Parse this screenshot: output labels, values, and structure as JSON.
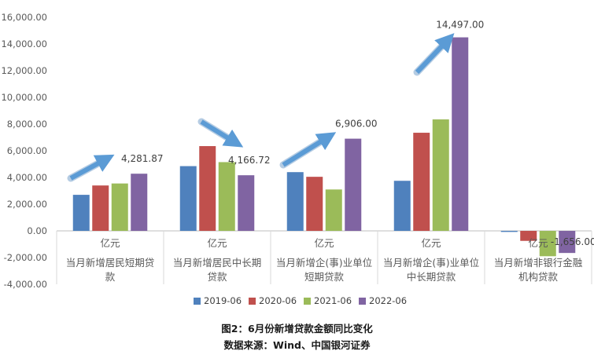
{
  "chart_data": {
    "type": "bar",
    "categories": [
      {
        "unit": "亿元",
        "lines": [
          "当月新增居民短期贷",
          "款"
        ]
      },
      {
        "unit": "亿元",
        "lines": [
          "当月新增居民中长期",
          "贷款"
        ]
      },
      {
        "unit": "亿元",
        "lines": [
          "当月新增企(事)业单位",
          "短期贷款"
        ]
      },
      {
        "unit": "亿元",
        "lines": [
          "当月新增企(事)业单位",
          "中长期贷款"
        ]
      },
      {
        "unit": "亿元",
        "lines": [
          "当月新增非银行金融",
          "机构贷款"
        ]
      }
    ],
    "series": [
      {
        "name": "2019-06",
        "color": "#4F81BD",
        "values": [
          2700,
          4850,
          4400,
          3750,
          -80
        ]
      },
      {
        "name": "2020-06",
        "color": "#C0504D",
        "values": [
          3400,
          6350,
          4050,
          7350,
          -750
        ]
      },
      {
        "name": "2021-06",
        "color": "#9BBB59",
        "values": [
          3550,
          5150,
          3100,
          8350,
          -1900
        ]
      },
      {
        "name": "2022-06",
        "color": "#8064A2",
        "values": [
          4281.87,
          4166.72,
          6906.0,
          14497.0,
          -1656.0
        ]
      }
    ],
    "data_labels": [
      "4,281.87",
      "4,166.72",
      "6,906.00",
      "14,497.00",
      "-1,656.00"
    ],
    "y_ticks": [
      "-4,000.00",
      "-2,000.00",
      "0.00",
      "2,000.00",
      "4,000.00",
      "6,000.00",
      "8,000.00",
      "10,000.00",
      "12,000.00",
      "14,000.00",
      "16,000.00"
    ],
    "ylim": [
      -4000,
      16000
    ],
    "grid": false,
    "legend_position": "bottom",
    "arrow_color": "#5B9BD5",
    "arrows": [
      "up",
      "down",
      "up",
      "up"
    ]
  },
  "caption": {
    "title": "图2：6月份新增贷款金额同比变化",
    "source": "数据来源：Wind、中国银河证券"
  }
}
